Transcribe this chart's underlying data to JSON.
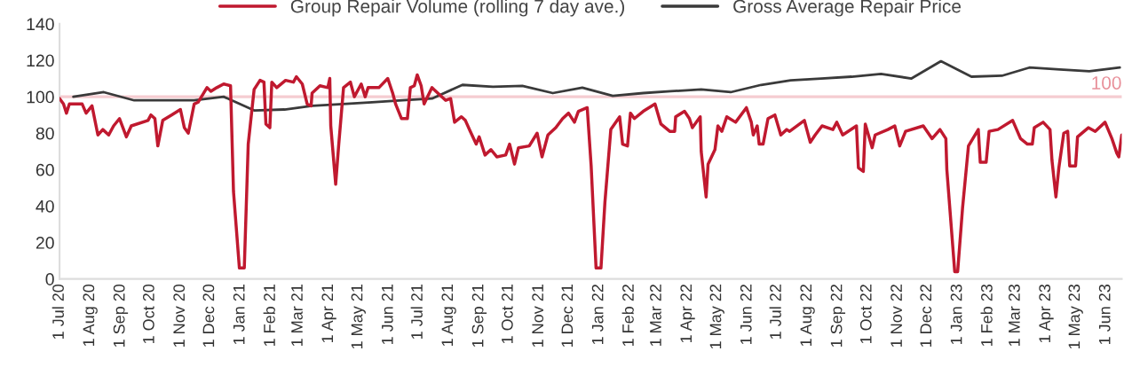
{
  "chart_data": {
    "type": "line",
    "series": [
      {
        "name": "Group Repair Volume (rolling 7 day ave.)",
        "color": "#c0192f",
        "x": [
          "2020-07-01",
          "2020-07-05",
          "2020-07-08",
          "2020-07-11",
          "2020-07-24",
          "2020-07-28",
          "2020-08-03",
          "2020-08-09",
          "2020-08-14",
          "2020-08-20",
          "2020-08-25",
          "2020-08-31",
          "2020-09-07",
          "2020-09-12",
          "2020-09-29",
          "2020-10-02",
          "2020-10-06",
          "2020-10-09",
          "2020-10-14",
          "2020-10-23",
          "2020-11-01",
          "2020-11-05",
          "2020-11-09",
          "2020-11-15",
          "2020-11-19",
          "2020-11-28",
          "2020-12-02",
          "2020-12-08",
          "2020-12-15",
          "2020-12-22",
          "2020-12-25",
          "2020-12-31",
          "2021-01-05",
          "2021-01-09",
          "2021-01-15",
          "2021-01-21",
          "2021-01-25",
          "2021-01-27",
          "2021-01-31",
          "2021-02-02",
          "2021-02-07",
          "2021-02-16",
          "2021-02-24",
          "2021-02-27",
          "2021-03-05",
          "2021-03-10",
          "2021-03-14",
          "2021-03-15",
          "2021-03-23",
          "2021-03-31",
          "2021-04-02",
          "2021-04-03",
          "2021-04-08",
          "2021-04-11",
          "2021-04-16",
          "2021-04-23",
          "2021-04-27",
          "2021-05-04",
          "2021-05-08",
          "2021-05-11",
          "2021-05-22",
          "2021-05-31",
          "2021-06-05",
          "2021-06-08",
          "2021-06-14",
          "2021-06-20",
          "2021-06-23",
          "2021-06-27",
          "2021-06-30",
          "2021-07-04",
          "2021-07-07",
          "2021-07-15",
          "2021-07-17",
          "2021-07-29",
          "2021-08-03",
          "2021-08-07",
          "2021-08-14",
          "2021-08-18",
          "2021-08-23",
          "2021-08-29",
          "2021-09-01",
          "2021-09-07",
          "2021-09-13",
          "2021-09-19",
          "2021-09-28",
          "2021-10-02",
          "2021-10-07",
          "2021-10-11",
          "2021-10-22",
          "2021-10-30",
          "2021-11-04",
          "2021-11-10",
          "2021-11-18",
          "2021-11-25",
          "2021-12-01",
          "2021-12-07",
          "2021-12-11",
          "2021-12-20",
          "2021-12-24",
          "2021-12-29",
          "2022-01-03",
          "2022-01-07",
          "2022-01-13",
          "2022-01-22",
          "2022-01-25",
          "2022-01-30",
          "2022-02-02",
          "2022-02-06",
          "2022-02-15",
          "2022-02-27",
          "2022-03-05",
          "2022-03-14",
          "2022-03-19",
          "2022-03-20",
          "2022-03-29",
          "2022-04-03",
          "2022-04-06",
          "2022-04-14",
          "2022-04-15",
          "2022-04-20",
          "2022-04-22",
          "2022-04-29",
          "2022-05-02",
          "2022-05-06",
          "2022-05-11",
          "2022-05-20",
          "2022-05-31",
          "2022-06-05",
          "2022-06-07",
          "2022-06-11",
          "2022-06-13",
          "2022-06-17",
          "2022-06-22",
          "2022-06-29",
          "2022-07-05",
          "2022-07-11",
          "2022-07-14",
          "2022-07-29",
          "2022-08-04",
          "2022-08-09",
          "2022-08-16",
          "2022-08-27",
          "2022-08-31",
          "2022-09-06",
          "2022-09-20",
          "2022-09-22",
          "2022-09-27",
          "2022-09-29",
          "2022-10-06",
          "2022-10-09",
          "2022-10-22",
          "2022-10-29",
          "2022-11-03",
          "2022-11-09",
          "2022-11-27",
          "2022-12-06",
          "2022-12-14",
          "2022-12-20",
          "2022-12-21",
          "2022-12-29",
          "2023-01-01",
          "2023-01-06",
          "2023-01-12",
          "2023-01-22",
          "2023-01-24",
          "2023-01-30",
          "2023-02-02",
          "2023-02-11",
          "2023-02-26",
          "2023-03-06",
          "2023-03-13",
          "2023-03-18",
          "2023-03-20",
          "2023-03-29",
          "2023-04-05",
          "2023-04-07",
          "2023-04-11",
          "2023-04-14",
          "2023-04-19",
          "2023-04-23",
          "2023-04-25",
          "2023-05-01",
          "2023-05-03",
          "2023-05-14",
          "2023-05-21",
          "2023-05-31",
          "2023-06-07",
          "2023-06-12",
          "2023-06-14",
          "2023-06-17"
        ],
        "values": [
          99,
          96,
          91,
          96,
          96,
          91,
          95,
          79,
          82,
          79,
          84,
          88,
          78,
          84,
          87,
          90,
          88,
          73,
          87,
          90,
          93,
          83,
          80,
          96,
          97,
          105,
          103,
          105,
          107,
          106,
          48,
          6,
          6,
          74,
          104,
          109,
          108,
          85,
          83,
          108,
          105,
          109,
          108,
          111,
          107,
          96,
          95,
          102,
          106,
          105,
          110,
          84,
          52,
          73,
          105,
          108,
          100,
          107,
          100,
          105,
          105,
          110,
          102,
          96,
          88,
          88,
          105,
          106,
          112,
          106,
          96,
          105,
          104,
          98,
          99,
          86,
          89,
          87,
          81,
          74,
          78,
          68,
          71,
          67,
          68,
          74,
          63,
          72,
          73,
          80,
          67,
          79,
          83,
          88,
          91,
          86,
          92,
          94,
          62,
          6,
          6,
          42,
          82,
          89,
          74,
          73,
          91,
          88,
          92,
          96,
          85,
          81,
          81,
          89,
          92,
          88,
          83,
          89,
          70,
          45,
          63,
          71,
          84,
          81,
          89,
          86,
          94,
          86,
          79,
          84,
          74,
          74,
          88,
          90,
          79,
          82,
          81,
          87,
          75,
          79,
          84,
          82,
          86,
          79,
          84,
          61,
          59,
          85,
          72,
          79,
          82,
          84,
          73,
          81,
          84,
          77,
          82,
          77,
          60,
          4,
          4,
          39,
          73,
          82,
          64,
          64,
          81,
          82,
          87,
          77,
          74,
          74,
          83,
          86,
          82,
          65,
          45,
          61,
          80,
          81,
          62,
          62,
          78,
          83,
          81,
          86,
          77,
          69,
          67,
          79
        ]
      },
      {
        "name": "Gross Average Repair Price",
        "color": "#3a3a3a",
        "x": [
          "2020-07-15",
          "2020-08-15",
          "2020-09-15",
          "2020-10-15",
          "2020-11-15",
          "2020-12-15",
          "2021-01-15",
          "2021-02-15",
          "2021-03-15",
          "2021-04-15",
          "2021-05-15",
          "2021-06-15",
          "2021-07-15",
          "2021-08-15",
          "2021-09-15",
          "2021-10-15",
          "2021-11-15",
          "2021-12-15",
          "2022-01-15",
          "2022-02-15",
          "2022-03-15",
          "2022-04-15",
          "2022-05-15",
          "2022-06-15",
          "2022-07-15",
          "2022-08-15",
          "2022-09-15",
          "2022-10-15",
          "2022-11-15",
          "2022-12-15",
          "2023-01-15",
          "2023-02-15",
          "2023-03-15",
          "2023-04-15",
          "2023-05-15",
          "2023-06-15"
        ],
        "values": [
          100,
          102.5,
          98,
          98,
          98,
          100,
          92.5,
          93,
          95,
          96,
          97,
          98,
          99,
          106.5,
          105.5,
          106,
          102,
          105,
          100.5,
          102,
          103,
          104,
          102.5,
          106.5,
          109,
          110,
          111,
          112.5,
          110,
          119.5,
          111,
          111.5,
          116,
          115,
          114,
          116
        ]
      }
    ],
    "ref_lines": [
      {
        "axis": "y",
        "value": 100,
        "label": "100",
        "color": "#e88f99"
      }
    ],
    "xlim": [
      "2020-07-01",
      "2023-06-17"
    ],
    "xticks": [
      {
        "value": "2020-07-01",
        "label": "1 Jul 20"
      },
      {
        "value": "2020-08-01",
        "label": "1 Aug 20"
      },
      {
        "value": "2020-09-01",
        "label": "1 Sep 20"
      },
      {
        "value": "2020-10-01",
        "label": "1 Oct 20"
      },
      {
        "value": "2020-11-01",
        "label": "1 Nov 20"
      },
      {
        "value": "2020-12-01",
        "label": "1 Dec 20"
      },
      {
        "value": "2021-01-01",
        "label": "1 Jan 21"
      },
      {
        "value": "2021-02-01",
        "label": "1 Feb 21"
      },
      {
        "value": "2021-03-01",
        "label": "1 Mar 21"
      },
      {
        "value": "2021-04-01",
        "label": "1 Apr 21"
      },
      {
        "value": "2021-05-01",
        "label": "1 May 21"
      },
      {
        "value": "2021-06-01",
        "label": "1 Jun 21"
      },
      {
        "value": "2021-07-01",
        "label": "1 Jul 21"
      },
      {
        "value": "2021-08-01",
        "label": "1 Aug 21"
      },
      {
        "value": "2021-09-01",
        "label": "1 Sep 21"
      },
      {
        "value": "2021-10-01",
        "label": "1 Oct 21"
      },
      {
        "value": "2021-11-01",
        "label": "1 Nov 21"
      },
      {
        "value": "2021-12-01",
        "label": "1 Dec 21"
      },
      {
        "value": "2022-01-01",
        "label": "1 Jan 22"
      },
      {
        "value": "2022-02-01",
        "label": "1 Feb 22"
      },
      {
        "value": "2022-03-01",
        "label": "1 Mar 22"
      },
      {
        "value": "2022-04-01",
        "label": "1 Apr 22"
      },
      {
        "value": "2022-05-01",
        "label": "1 May 22"
      },
      {
        "value": "2022-06-01",
        "label": "1 Jun 22"
      },
      {
        "value": "2022-07-01",
        "label": "1 Jul 22"
      },
      {
        "value": "2022-08-01",
        "label": "1 Aug 22"
      },
      {
        "value": "2022-09-01",
        "label": "1 Sep 22"
      },
      {
        "value": "2022-10-01",
        "label": "1 Oct 22"
      },
      {
        "value": "2022-11-01",
        "label": "1 Nov 22"
      },
      {
        "value": "2022-12-01",
        "label": "1 Dec 22"
      },
      {
        "value": "2023-01-01",
        "label": "1 Jan 23"
      },
      {
        "value": "2023-02-01",
        "label": "1 Feb 23"
      },
      {
        "value": "2023-03-01",
        "label": "1 Mar 23"
      },
      {
        "value": "2023-04-01",
        "label": "1 Apr 23"
      },
      {
        "value": "2023-05-01",
        "label": "1 May 23"
      },
      {
        "value": "2023-06-01",
        "label": "1 Jun 23"
      }
    ],
    "ylim": [
      0,
      140
    ],
    "yticks": [
      0,
      20,
      40,
      60,
      80,
      100,
      120,
      140
    ],
    "legend": "top",
    "grid": false,
    "line_style": "solid",
    "marker": "none"
  }
}
